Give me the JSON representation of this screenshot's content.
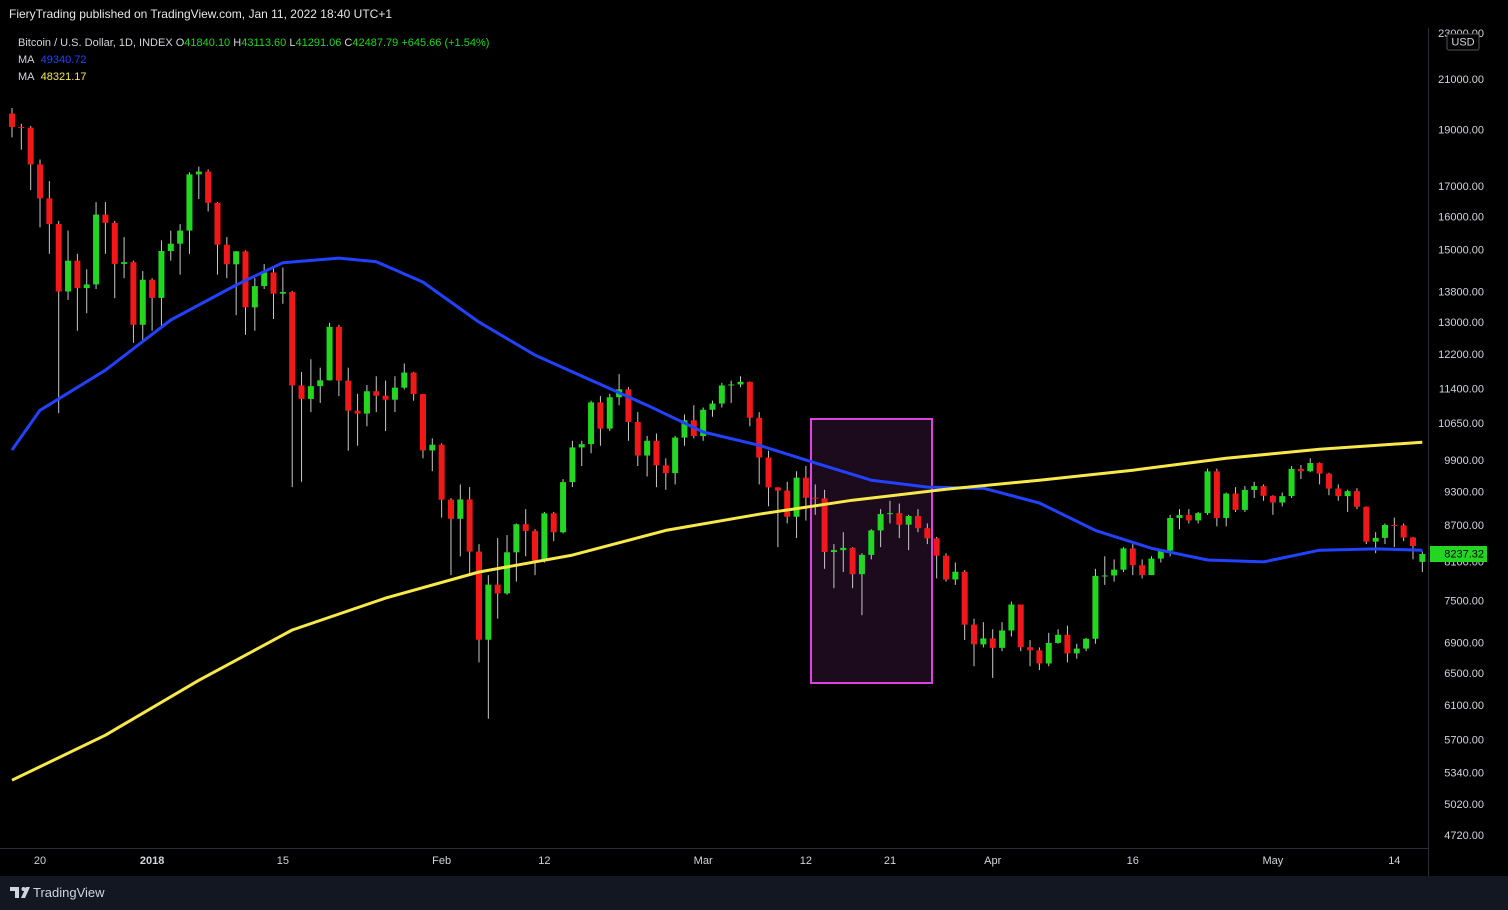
{
  "header": {
    "publisher": "FieryTrading published on TradingView.com, Jan 11, 2022 18:40 UTC+1"
  },
  "footer": {
    "brand": "TradingView"
  },
  "chart_data": {
    "type": "candlestick",
    "legend": {
      "symbol": "Bitcoin / U.S. Dollar, 1D, INDEX",
      "ohlc": [
        {
          "key": "O",
          "value": "41840.10"
        },
        {
          "key": "H",
          "value": "43113.60"
        },
        {
          "key": "L",
          "value": "41291.06"
        },
        {
          "key": "C",
          "value": "42487.79"
        }
      ],
      "change": "+645.66 (+1.54%)"
    },
    "currency": "USD",
    "log_scale": true,
    "up_color": "#22d622",
    "down_color": "#f01818",
    "wick_color": "#c8c8c8",
    "ylim": [
      4610,
      23270
    ],
    "yticks": [
      {
        "value": 23000,
        "label": "23000.00"
      },
      {
        "value": 21000,
        "label": "21000.00"
      },
      {
        "value": 19000,
        "label": "19000.00"
      },
      {
        "value": 17000,
        "label": "17000.00"
      },
      {
        "value": 16000,
        "label": "16000.00"
      },
      {
        "value": 15000,
        "label": "15000.00"
      },
      {
        "value": 13800,
        "label": "13800.00"
      },
      {
        "value": 13000,
        "label": "13000.00"
      },
      {
        "value": 12200,
        "label": "12200.00"
      },
      {
        "value": 11400,
        "label": "11400.00"
      },
      {
        "value": 10650,
        "label": "10650.00"
      },
      {
        "value": 9900,
        "label": "9900.00"
      },
      {
        "value": 9300,
        "label": "9300.00"
      },
      {
        "value": 8700,
        "label": "8700.00"
      },
      {
        "value": 8100,
        "label": "8100.00"
      },
      {
        "value": 7500,
        "label": "7500.00"
      },
      {
        "value": 6900,
        "label": "6900.00"
      },
      {
        "value": 6500,
        "label": "6500.00"
      },
      {
        "value": 6100,
        "label": "6100.00"
      },
      {
        "value": 5700,
        "label": "5700.00"
      },
      {
        "value": 5340,
        "label": "5340.00"
      },
      {
        "value": 5020,
        "label": "5020.00"
      },
      {
        "value": 4720,
        "label": "4720.00"
      }
    ],
    "categories": [
      null,
      null,
      null,
      "20",
      null,
      null,
      null,
      null,
      null,
      null,
      null,
      null,
      null,
      null,
      null,
      "2018",
      null,
      null,
      null,
      null,
      null,
      null,
      null,
      null,
      null,
      null,
      null,
      null,
      null,
      "15",
      null,
      null,
      null,
      null,
      null,
      null,
      null,
      null,
      null,
      null,
      null,
      null,
      null,
      null,
      null,
      null,
      "Feb",
      null,
      null,
      null,
      null,
      null,
      null,
      null,
      null,
      null,
      null,
      "12",
      null,
      null,
      null,
      null,
      null,
      null,
      null,
      null,
      null,
      null,
      null,
      null,
      null,
      null,
      null,
      null,
      "Mar",
      null,
      null,
      null,
      null,
      null,
      null,
      null,
      null,
      null,
      null,
      "12",
      null,
      null,
      null,
      null,
      null,
      null,
      null,
      null,
      "21",
      null,
      null,
      null,
      null,
      null,
      null,
      null,
      null,
      null,
      null,
      "Apr",
      null,
      null,
      null,
      null,
      null,
      null,
      null,
      null,
      null,
      null,
      null,
      null,
      null,
      null,
      "16",
      null,
      null,
      null,
      null,
      null,
      null,
      null,
      null,
      null,
      null,
      null,
      null,
      null,
      null,
      "May",
      null,
      null,
      null,
      null,
      null,
      null,
      null,
      null,
      null,
      null,
      null,
      null,
      "14",
      null,
      null,
      null
    ],
    "open": [
      19650,
      19140,
      19114,
      17776,
      16624,
      15802,
      13831,
      14699,
      13925,
      14026,
      16099,
      15838,
      14606,
      14656,
      12952,
      14156,
      13657,
      14982,
      15201,
      15599,
      17429,
      17527,
      16477,
      15170,
      14595,
      14973,
      13405,
      13980,
      14360,
      13772,
      13819,
      11490,
      11188,
      11474,
      11607,
      12899,
      11600,
      10931,
      10868,
      11359,
      11259,
      11171,
      11440,
      11786,
      11296,
      10106,
      10221,
      9170,
      8830,
      9174,
      8277,
      6955,
      7754,
      7621,
      8265,
      8736,
      8621,
      8129,
      8926,
      8598,
      9494,
      10166,
      10233,
      11112,
      10551,
      11225,
      11403,
      10690,
      10005,
      10301,
      9813,
      9664,
      10366,
      10725,
      10397,
      10951,
      11086,
      11489,
      11512,
      11573,
      10779,
      9965,
      9395,
      9337,
      8866,
      9578,
      9205,
      9194,
      8269,
      8300,
      8338,
      7916,
      8223,
      8630,
      8913,
      8929,
      8728,
      8879,
      8668,
      8495,
      8210,
      7833,
      7954,
      7165,
      6891,
      6973,
      6844,
      7083,
      7456,
      6853,
      6811,
      6636,
      6911,
      7023,
      6770,
      6834,
      6968,
      7889,
      7895,
      7986,
      8329,
      8058,
      7902,
      8163,
      8294,
      8845,
      8895,
      8802,
      8930,
      9697,
      8845,
      9281,
      8987,
      9348,
      9419,
      9240,
      9119,
      9235,
      9744,
      9700,
      9858,
      9654,
      9373,
      9234,
      9325,
      9043,
      8441,
      8504,
      8723,
      8716,
      8510,
      8110
    ],
    "high": [
      19870,
      19260,
      19180,
      17950,
      17200,
      15900,
      15600,
      14900,
      14450,
      16500,
      16500,
      15900,
      15400,
      14700,
      14400,
      14200,
      15300,
      15600,
      15800,
      17500,
      17700,
      17600,
      16500,
      15400,
      14980,
      15000,
      14200,
      14600,
      14500,
      14500,
      13850,
      11800,
      12100,
      11900,
      13000,
      12950,
      11900,
      11300,
      11500,
      11700,
      11600,
      11700,
      12000,
      11800,
      11300,
      10350,
      10250,
      9200,
      9450,
      9400,
      8400,
      7900,
      8500,
      8550,
      8750,
      9000,
      8650,
      8950,
      8950,
      9550,
      10300,
      10300,
      11150,
      11250,
      11300,
      11750,
      11450,
      10900,
      10400,
      10450,
      9950,
      10400,
      10850,
      11050,
      11000,
      11150,
      11550,
      11600,
      11700,
      11580,
      10900,
      10100,
      9400,
      9500,
      9700,
      9800,
      9450,
      9350,
      8400,
      8600,
      8350,
      8250,
      8650,
      9000,
      9150,
      9100,
      8900,
      9000,
      8750,
      8520,
      8250,
      8100,
      7980,
      7250,
      7200,
      7100,
      7200,
      7500,
      7450,
      6950,
      6850,
      7050,
      7100,
      7150,
      6900,
      6980,
      8000,
      8200,
      8150,
      8350,
      8400,
      8150,
      8200,
      8300,
      8900,
      9000,
      9000,
      8950,
      9750,
      9750,
      9300,
      9400,
      9420,
      9500,
      9450,
      9250,
      9300,
      9800,
      9820,
      9950,
      9870,
      9670,
      9450,
      9350,
      9380,
      9050,
      8600,
      8750,
      8850,
      8750,
      8520,
      8280
    ],
    "low": [
      18750,
      18300,
      16900,
      15700,
      14900,
      10880,
      13600,
      12800,
      13250,
      13900,
      14900,
      13650,
      14200,
      12500,
      12500,
      12800,
      12900,
      14700,
      14300,
      14900,
      16600,
      16200,
      14300,
      14200,
      13200,
      12700,
      12800,
      13900,
      13100,
      13500,
      9400,
      9500,
      10900,
      11100,
      11600,
      11250,
      10100,
      10200,
      10600,
      10900,
      10500,
      10900,
      11400,
      11150,
      9950,
      9700,
      8850,
      7900,
      8200,
      7900,
      6650,
      5950,
      7250,
      7600,
      7800,
      8200,
      7900,
      8100,
      8450,
      8580,
      9400,
      9800,
      10050,
      10200,
      10500,
      11050,
      10300,
      9800,
      9600,
      9400,
      9350,
      9450,
      10200,
      10350,
      10300,
      10800,
      11000,
      11100,
      11450,
      10600,
      9450,
      9050,
      8350,
      8750,
      8500,
      8800,
      8900,
      8000,
      7700,
      7950,
      7700,
      7300,
      8150,
      8350,
      8750,
      8500,
      8300,
      8600,
      8400,
      7850,
      7800,
      7750,
      6950,
      6600,
      6850,
      6450,
      6800,
      7000,
      6800,
      6600,
      6550,
      6600,
      6900,
      6650,
      6700,
      6800,
      6900,
      7750,
      7800,
      7950,
      7900,
      7850,
      7900,
      8100,
      8200,
      8650,
      8750,
      8750,
      8900,
      8700,
      8700,
      8950,
      8950,
      9200,
      9150,
      8900,
      9050,
      9200,
      9550,
      9680,
      9450,
      9250,
      9150,
      8950,
      9000,
      8400,
      8250,
      8400,
      8350,
      8450,
      8150,
      7950
    ],
    "close": [
      19140,
      19114,
      17776,
      16624,
      15802,
      13831,
      14699,
      13925,
      14026,
      16099,
      15838,
      14606,
      14656,
      12952,
      14156,
      13657,
      14982,
      15201,
      15599,
      17429,
      17527,
      16477,
      15170,
      14595,
      14973,
      13405,
      13980,
      14360,
      13772,
      13819,
      11490,
      11188,
      11474,
      11607,
      12899,
      11600,
      10931,
      10868,
      11359,
      11259,
      11171,
      11440,
      11786,
      11296,
      10106,
      10221,
      9170,
      8830,
      9174,
      8277,
      6955,
      7754,
      7621,
      8265,
      8736,
      8621,
      8129,
      8926,
      8598,
      9494,
      10166,
      10233,
      11112,
      10551,
      11225,
      11403,
      10690,
      10005,
      10301,
      9813,
      9664,
      10366,
      10725,
      10397,
      10951,
      11086,
      11489,
      11512,
      11573,
      10779,
      9965,
      9395,
      9337,
      8866,
      9578,
      9205,
      9194,
      8269,
      8300,
      8338,
      7916,
      8223,
      8630,
      8913,
      8929,
      8728,
      8879,
      8668,
      8495,
      8210,
      7833,
      7954,
      7165,
      6891,
      6973,
      6844,
      7083,
      7456,
      6853,
      6811,
      6636,
      6911,
      7023,
      6770,
      6834,
      6968,
      7889,
      7895,
      7986,
      8329,
      8058,
      7902,
      8163,
      8294,
      8845,
      8895,
      8802,
      8930,
      9697,
      8845,
      9281,
      8987,
      9348,
      9419,
      9240,
      9119,
      9235,
      9744,
      9700,
      9858,
      9654,
      9373,
      9234,
      9325,
      9043,
      8441,
      8504,
      8723,
      8716,
      8510,
      8368,
      8237.32
    ],
    "series": [
      {
        "name": "MA",
        "color": "#2242ff",
        "legend_value": "49340.72",
        "x": [
          0,
          3,
          10,
          17,
          24,
          29,
          35,
          39,
          44,
          50,
          56,
          62,
          68,
          74,
          80,
          86,
          92,
          98,
          104,
          110,
          116,
          122,
          128,
          134,
          140,
          146,
          151
        ],
        "values": [
          10114,
          10940,
          11840,
          13075,
          14010,
          14640,
          14775,
          14670,
          14090,
          13020,
          12200,
          11610,
          11050,
          10480,
          10210,
          9860,
          9530,
          9400,
          9380,
          9110,
          8630,
          8330,
          8140,
          8110,
          8300,
          8320,
          8300
        ]
      },
      {
        "name": "MA",
        "color": "#f7e94a",
        "legend_value": "48321.17",
        "x": [
          0,
          10,
          20,
          30,
          40,
          50,
          60,
          70,
          80,
          90,
          100,
          110,
          120,
          130,
          140,
          151
        ],
        "values": [
          5270,
          5760,
          6420,
          7090,
          7550,
          7950,
          8220,
          8630,
          8910,
          9160,
          9360,
          9530,
          9720,
          9950,
          10130,
          10270
        ]
      }
    ]
  }
}
